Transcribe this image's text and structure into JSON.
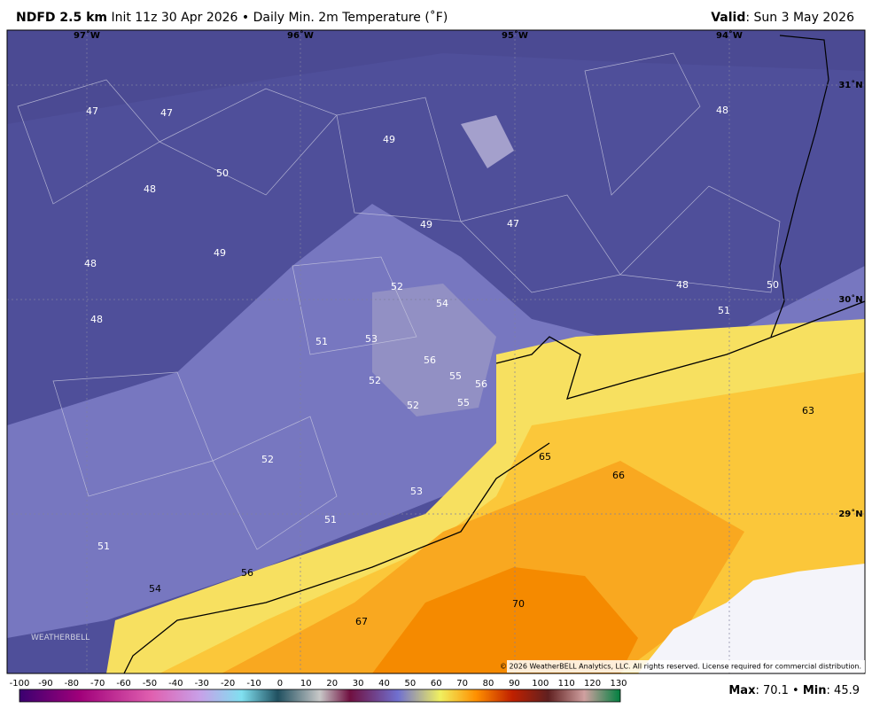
{
  "header": {
    "product": "NDFD 2.5 km",
    "description": "Init 11z 30 Apr 2026 • Daily Min. 2m Temperature (˚F)",
    "valid_label": "Valid",
    "valid_date": ": Sun 3 May 2026"
  },
  "longitude_labels": [
    "97˚W",
    "96˚W",
    "95˚W",
    "94˚W"
  ],
  "latitude_labels": [
    "31˚N",
    "30˚N",
    "29˚N"
  ],
  "station_values": [
    47,
    47,
    49,
    50,
    48,
    49,
    47,
    48,
    48,
    49,
    52,
    54,
    48,
    50,
    51,
    48,
    51,
    53,
    56,
    55,
    56,
    52,
    55,
    52,
    63,
    52,
    65,
    66,
    53,
    51,
    51,
    56,
    54,
    70,
    67
  ],
  "colorbar_ticks": [
    -100,
    -90,
    -80,
    -70,
    -60,
    -50,
    -40,
    -30,
    -20,
    -10,
    0,
    10,
    20,
    30,
    40,
    50,
    60,
    70,
    80,
    90,
    100,
    110,
    120,
    130
  ],
  "copyright": "© 2026 WeatherBELL Analytics, LLC. All rights reserved. License required for commercial distribution.",
  "logo": "WEATHERBELL",
  "footer": {
    "max_label": "Max",
    "max_value": ": 70.1 •",
    "min_label": "Min",
    "min_value": ": 45.9"
  }
}
